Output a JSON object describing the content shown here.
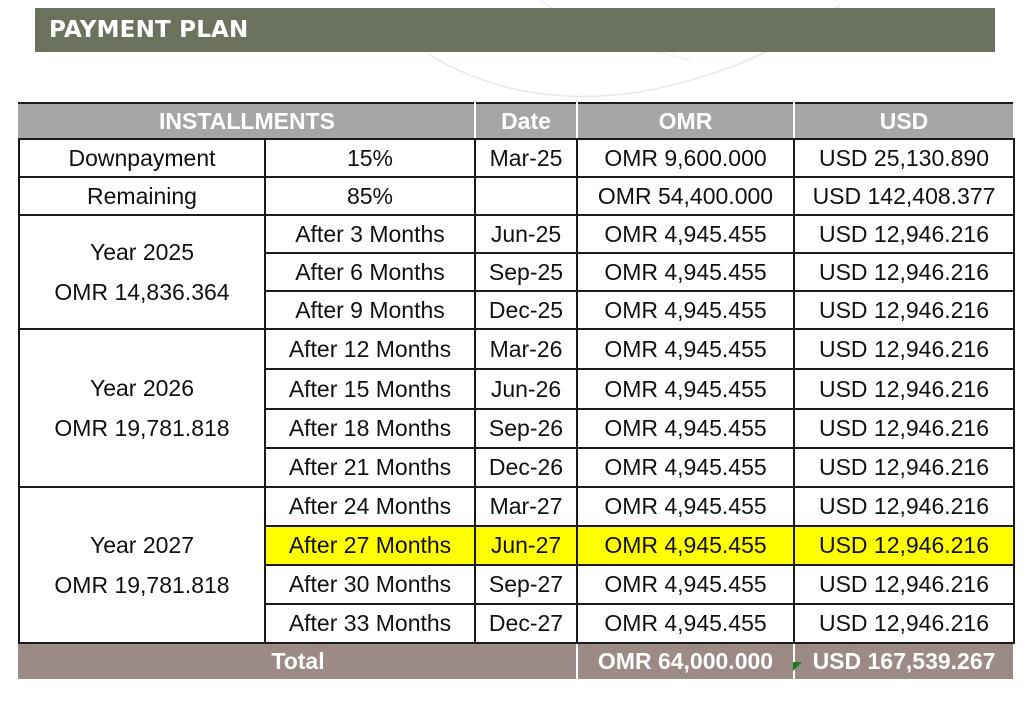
{
  "banner": {
    "title": "PAYMENT PLAN"
  },
  "table": {
    "headers": {
      "installments": "INSTALLMENTS",
      "date": "Date",
      "omr": "OMR",
      "usd": "USD"
    },
    "downpayment": {
      "label": "Downpayment",
      "percent": "15%",
      "date": "Mar-25",
      "omr": "OMR 9,600.000",
      "usd": "USD 25,130.890"
    },
    "remaining": {
      "label": "Remaining",
      "percent": "85%",
      "date": "",
      "omr": "OMR 54,400.000",
      "usd": "USD 142,408.377"
    },
    "years": [
      {
        "year": "Year 2025",
        "total": "OMR 14,836.364"
      },
      {
        "year": "Year 2026",
        "total": "OMR 19,781.818"
      },
      {
        "year": "Year 2027",
        "total": "OMR 19,781.818"
      }
    ],
    "rows": [
      {
        "period": "After 3 Months",
        "date": "Jun-25",
        "omr": "OMR 4,945.455",
        "usd": "USD 12,946.216"
      },
      {
        "period": "After 6 Months",
        "date": "Sep-25",
        "omr": "OMR 4,945.455",
        "usd": "USD 12,946.216"
      },
      {
        "period": "After 9 Months",
        "date": "Dec-25",
        "omr": "OMR 4,945.455",
        "usd": "USD 12,946.216"
      },
      {
        "period": "After 12 Months",
        "date": "Mar-26",
        "omr": "OMR 4,945.455",
        "usd": "USD 12,946.216"
      },
      {
        "period": "After 15 Months",
        "date": "Jun-26",
        "omr": "OMR 4,945.455",
        "usd": "USD 12,946.216"
      },
      {
        "period": "After 18 Months",
        "date": "Sep-26",
        "omr": "OMR 4,945.455",
        "usd": "USD 12,946.216"
      },
      {
        "period": "After 21 Months",
        "date": "Dec-26",
        "omr": "OMR 4,945.455",
        "usd": "USD 12,946.216"
      },
      {
        "period": "After 24 Months",
        "date": "Mar-27",
        "omr": "OMR 4,945.455",
        "usd": "USD 12,946.216"
      },
      {
        "period": "After 27 Months",
        "date": "Jun-27",
        "omr": "OMR 4,945.455",
        "usd": "USD 12,946.216"
      },
      {
        "period": "After 30 Months",
        "date": "Sep-27",
        "omr": "OMR 4,945.455",
        "usd": "USD 12,946.216"
      },
      {
        "period": "After 33 Months",
        "date": "Dec-27",
        "omr": "OMR 4,945.455",
        "usd": "USD 12,946.216"
      }
    ],
    "highlighted_row": "After 27 Months",
    "total": {
      "label": "Total",
      "omr": "OMR 64,000.000",
      "usd": "USD 167,539.267"
    }
  },
  "colors": {
    "banner_bg": "#6b735e",
    "header_bg": "#a8a5a5",
    "total_bg": "#9b8a85",
    "highlight": "#ffff00"
  }
}
